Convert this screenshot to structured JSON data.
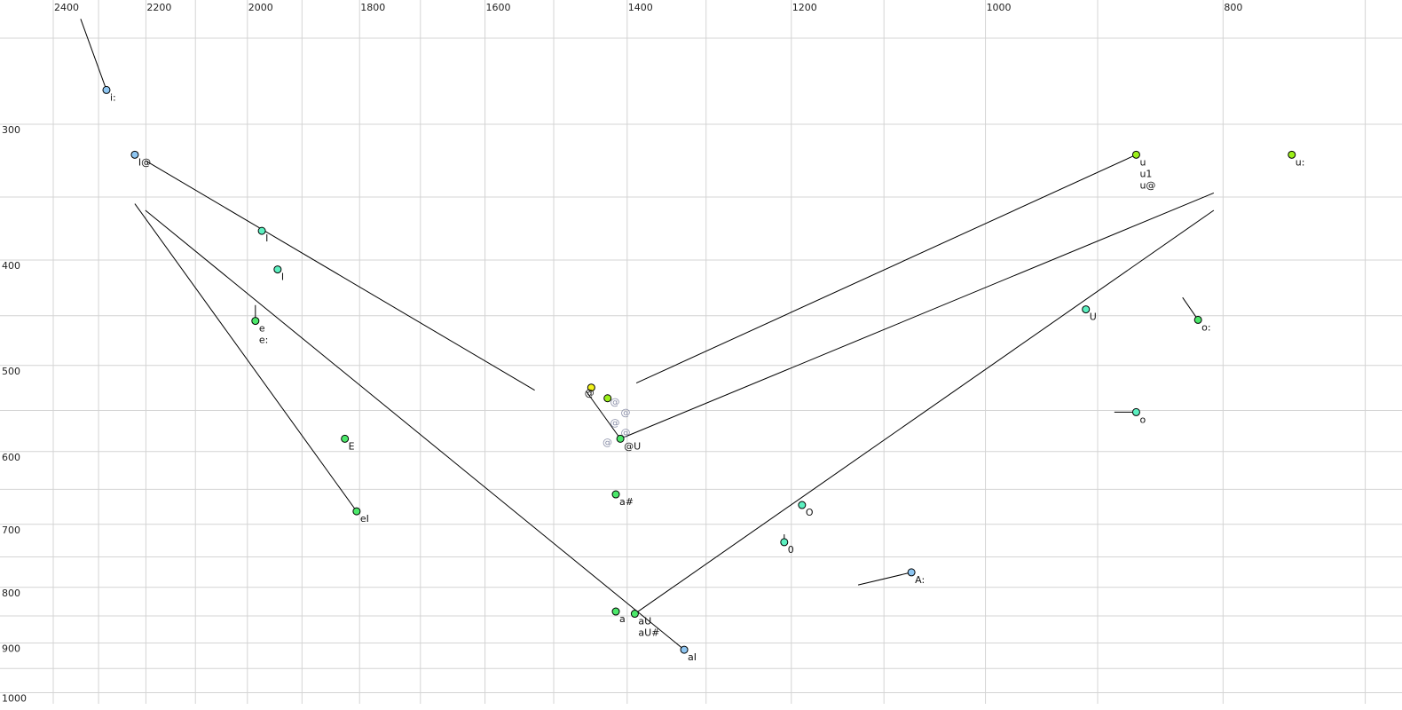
{
  "chart_data": {
    "type": "scatter",
    "title": "",
    "xlabel": "",
    "ylabel": "",
    "x_axis": {
      "scale": "log",
      "reversed": true,
      "range": [
        2400,
        700
      ],
      "ticks": [
        2400,
        2200,
        2000,
        1800,
        1600,
        1400,
        1200,
        1000,
        800
      ],
      "grid_step": 100,
      "position": "top"
    },
    "y_axis": {
      "scale": "log",
      "reversed": false,
      "range": [
        250,
        1000
      ],
      "ticks": [
        300,
        400,
        500,
        600,
        700,
        800,
        900,
        1000
      ],
      "grid_step": 50,
      "position": "left"
    },
    "grid": true,
    "colors": {
      "blue": "#8ec6f2",
      "teal": "#5cf0c0",
      "green": "#4be86a",
      "lime": "#9cf01a",
      "yellow": "#f2f21a",
      "grid": "#d4d4d4",
      "trajectory": "#8a8fa8"
    },
    "points": [
      {
        "f2": 2283,
        "f1": 279,
        "labels": [
          "i:"
        ],
        "color": "blue"
      },
      {
        "f2": 2223,
        "f1": 320,
        "labels": [
          "I@"
        ],
        "color": "blue"
      },
      {
        "f2": 1973,
        "f1": 376,
        "labels": [
          "I"
        ],
        "color": "teal"
      },
      {
        "f2": 1944,
        "f1": 408,
        "labels": [
          "I"
        ],
        "color": "teal"
      },
      {
        "f2": 1985,
        "f1": 455,
        "labels": [
          "e",
          "e:"
        ],
        "color": "green"
      },
      {
        "f2": 1825,
        "f1": 584,
        "labels": [
          "E"
        ],
        "color": "green"
      },
      {
        "f2": 1805,
        "f1": 681,
        "labels": [
          "eI"
        ],
        "color": "green"
      },
      {
        "f2": 1448,
        "f1": 524,
        "labels": [],
        "color": "yellow"
      },
      {
        "f2": 1426,
        "f1": 536,
        "labels": [
          "@"
        ],
        "color": "lime"
      },
      {
        "f2": 1409,
        "f1": 584,
        "labels": [
          "@U"
        ],
        "color": "green"
      },
      {
        "f2": 1415,
        "f1": 657,
        "labels": [
          "a#"
        ],
        "color": "green"
      },
      {
        "f2": 1415,
        "f1": 842,
        "labels": [
          "a"
        ],
        "color": "green"
      },
      {
        "f2": 1390,
        "f1": 846,
        "labels": [
          "aU",
          "aU#"
        ],
        "color": "green"
      },
      {
        "f2": 1327,
        "f1": 913,
        "labels": [
          "aI"
        ],
        "color": "blue"
      },
      {
        "f2": 1188,
        "f1": 672,
        "labels": [
          "O"
        ],
        "color": "teal"
      },
      {
        "f2": 1208,
        "f1": 727,
        "labels": [
          "0"
        ],
        "color": "teal"
      },
      {
        "f2": 1072,
        "f1": 775,
        "labels": [
          "A:"
        ],
        "color": "blue"
      },
      {
        "f2": 910,
        "f1": 444,
        "labels": [
          "U"
        ],
        "color": "teal"
      },
      {
        "f2": 819,
        "f1": 454,
        "labels": [
          "o:"
        ],
        "color": "green"
      },
      {
        "f2": 868,
        "f1": 552,
        "labels": [
          "o"
        ],
        "color": "teal"
      },
      {
        "f2": 868,
        "f1": 320,
        "labels": [
          "u",
          "u1",
          "u@"
        ],
        "color": "lime"
      },
      {
        "f2": 750,
        "f1": 320,
        "labels": [
          "u:"
        ],
        "color": "lime"
      }
    ],
    "trajectory_marks": {
      "label": "@",
      "points": [
        [
          1418,
          540
        ],
        [
          1418,
          552
        ],
        [
          1418,
          564
        ],
        [
          1418,
          576
        ],
        [
          1428,
          588
        ]
      ]
    },
    "lines": [
      {
        "from": [
          2339,
          240
        ],
        "to": [
          2283,
          279
        ]
      },
      {
        "from": [
          2201,
          324
        ],
        "to": [
          1527,
          527
        ]
      },
      {
        "from": [
          2223,
          355
        ],
        "to": [
          1805,
          681
        ]
      },
      {
        "from": [
          2201,
          360
        ],
        "to": [
          1327,
          913
        ]
      },
      {
        "from": [
          1985,
          440
        ],
        "to": [
          1985,
          455
        ]
      },
      {
        "from": [
          1455,
          528
        ],
        "to": [
          1409,
          584
        ]
      },
      {
        "from": [
          1409,
          584
        ],
        "to": [
          807,
          347
        ]
      },
      {
        "from": [
          1388,
          519
        ],
        "to": [
          868,
          320
        ]
      },
      {
        "from": [
          1390,
          846
        ],
        "to": [
          807,
          360
        ]
      },
      {
        "from": [
          1208,
          715
        ],
        "to": [
          1208,
          727
        ]
      },
      {
        "from": [
          1127,
          796
        ],
        "to": [
          1072,
          775
        ]
      },
      {
        "from": [
          831,
          433
        ],
        "to": [
          819,
          454
        ]
      },
      {
        "from": [
          886,
          552
        ],
        "to": [
          868,
          552
        ]
      }
    ]
  }
}
